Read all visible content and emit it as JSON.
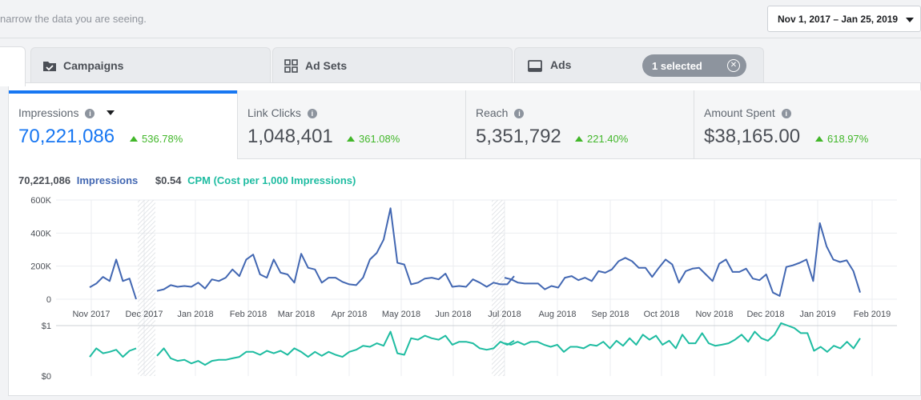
{
  "header": {
    "hint": "narrow the data you are seeing.",
    "date_range": "Nov 1, 2017 – Jan 25, 2019"
  },
  "tabs": [
    {
      "label": "Campaigns",
      "icon": "folder-check-icon"
    },
    {
      "label": "Ad Sets",
      "icon": "grid-icon"
    },
    {
      "label": "Ads",
      "icon": "ad-monitor-icon"
    }
  ],
  "selection": {
    "label": "1 selected"
  },
  "metrics": [
    {
      "label": "Impressions",
      "value": "70,221,086",
      "delta": "536.78%"
    },
    {
      "label": "Link Clicks",
      "value": "1,048,401",
      "delta": "361.08%"
    },
    {
      "label": "Reach",
      "value": "5,351,792",
      "delta": "221.40%"
    },
    {
      "label": "Amount Spent",
      "value": "$38,165.00",
      "delta": "618.97%"
    }
  ],
  "legend": {
    "impressions_value": "70,221,086",
    "impressions_label": "Impressions",
    "cpm_value": "$0.54",
    "cpm_label": "CPM (Cost per 1,000 Impressions)"
  },
  "colors": {
    "impressions": "#4267b2",
    "cpm": "#1ebca1",
    "accent": "#1877f2",
    "positive": "#42b72a"
  },
  "chart_data": [
    {
      "type": "line",
      "series": [
        {
          "name": "Impressions",
          "values": [
            [
              72000,
              95000,
              135000,
              110000,
              240000,
              110000,
              125000,
              0
            ],
            [
              50000,
              60000,
              85000,
              75000,
              80000,
              75000,
              100000,
              65000,
              120000,
              110000,
              130000,
              180000,
              140000,
              240000,
              270000,
              150000,
              130000,
              240000,
              160000,
              150000,
              100000,
              275000,
              190000,
              180000,
              100000,
              130000,
              130000,
              105000,
              90000,
              85000,
              130000,
              240000,
              280000,
              360000,
              550000,
              220000,
              210000,
              90000,
              100000,
              125000,
              130000,
              120000,
              155000,
              75000,
              80000,
              75000,
              120000,
              100000,
              75000,
              100000,
              90000,
              90000,
              140000
            ],
            [
              130000,
              120000,
              100000,
              95000,
              95000,
              95000,
              60000,
              80000,
              70000,
              130000,
              140000,
              115000,
              130000,
              110000,
              170000,
              160000,
              180000,
              230000,
              250000,
              230000,
              190000,
              190000,
              135000,
              190000,
              240000,
              210000,
              100000,
              170000,
              185000,
              190000,
              150000,
              110000,
              215000,
              240000,
              165000,
              165000,
              185000,
              125000,
              115000,
              150000,
              40000,
              20000,
              195000,
              205000,
              220000,
              240000,
              110000,
              460000,
              320000,
              240000,
              225000,
              235000,
              170000,
              40000
            ]
          ]
        }
      ],
      "x_labels": [
        "Nov 2017",
        "Dec 2017",
        "Jan 2018",
        "Feb 2018",
        "Mar 2018",
        "Apr 2018",
        "May 2018",
        "Jun 2018",
        "Jul 2018",
        "Aug 2018",
        "Sep 2018",
        "Oct 2018",
        "Nov 2018",
        "Dec 2018",
        "Jan 2019",
        "Feb 2019"
      ],
      "y_ticks": [
        "0",
        "200K",
        "400K",
        "600K"
      ],
      "ylim": [
        0,
        600000
      ],
      "grid": true
    },
    {
      "type": "line",
      "series": [
        {
          "name": "CPM (Cost per 1,000 Impressions)",
          "values": [
            [
              0.38,
              0.55,
              0.45,
              0.48,
              0.52,
              0.38,
              0.5,
              0.55
            ],
            [
              0.4,
              0.55,
              0.35,
              0.3,
              0.32,
              0.25,
              0.3,
              0.22,
              0.3,
              0.32,
              0.32,
              0.35,
              0.38,
              0.48,
              0.48,
              0.42,
              0.5,
              0.45,
              0.5,
              0.42,
              0.55,
              0.48,
              0.38,
              0.48,
              0.4,
              0.48,
              0.42,
              0.38,
              0.48,
              0.52,
              0.6,
              0.58,
              0.65,
              0.6,
              0.88,
              0.45,
              0.42,
              0.75,
              0.72,
              0.8,
              0.75,
              0.72,
              0.8,
              0.62,
              0.68,
              0.68,
              0.65,
              0.55,
              0.52,
              0.55,
              0.68,
              0.62,
              0.7
            ],
            [
              0.65,
              0.62,
              0.68,
              0.62,
              0.68,
              0.68,
              0.62,
              0.58,
              0.62,
              0.48,
              0.58,
              0.58,
              0.55,
              0.62,
              0.6,
              0.68,
              0.55,
              0.7,
              0.6,
              0.75,
              0.62,
              0.82,
              0.72,
              0.8,
              0.62,
              0.7,
              0.55,
              0.82,
              0.65,
              0.65,
              0.85,
              0.65,
              0.6,
              0.62,
              0.65,
              0.72,
              0.82,
              0.68,
              0.88,
              0.75,
              0.7,
              0.82,
              1.05,
              1.0,
              0.95,
              0.85,
              0.85,
              0.5,
              0.58,
              0.48,
              0.6,
              0.55,
              0.68,
              0.55,
              0.75
            ]
          ]
        }
      ],
      "y_ticks": [
        "$0",
        "$1"
      ],
      "ylim": [
        0,
        1
      ],
      "grid": false
    }
  ]
}
